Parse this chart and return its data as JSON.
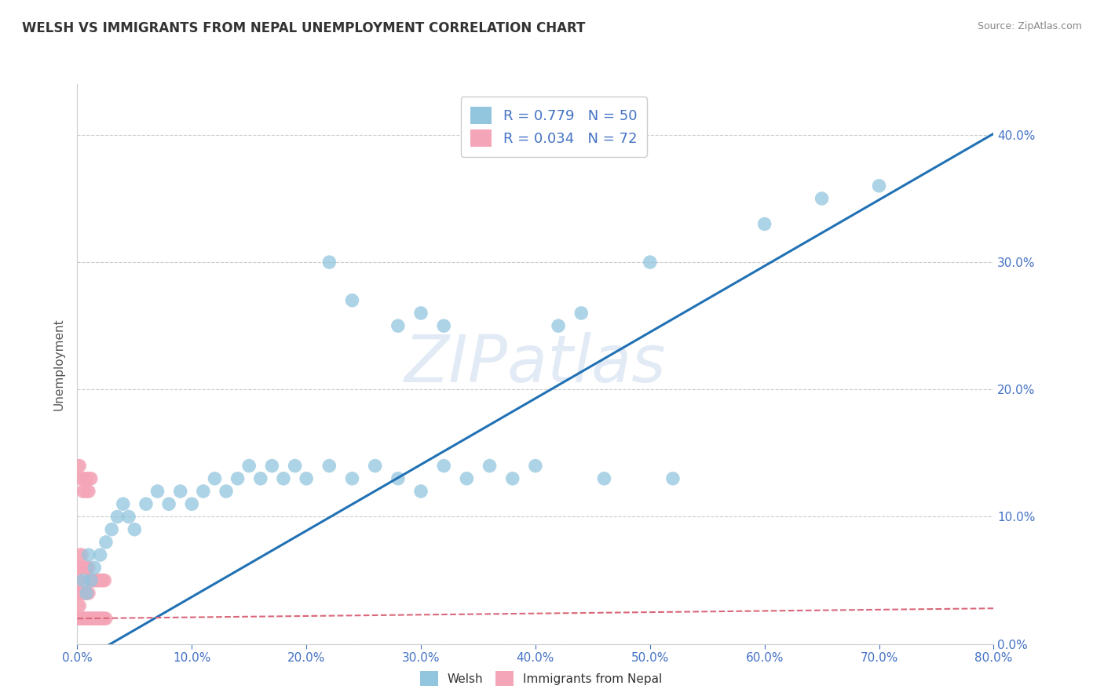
{
  "title": "WELSH VS IMMIGRANTS FROM NEPAL UNEMPLOYMENT CORRELATION CHART",
  "source": "Source: ZipAtlas.com",
  "ylabel": "Unemployment",
  "watermark": "ZIPatlas",
  "xlim": [
    0,
    0.8
  ],
  "ylim": [
    0,
    0.44
  ],
  "welsh_R": 0.779,
  "welsh_N": 50,
  "nepal_R": 0.034,
  "nepal_N": 72,
  "welsh_color": "#92c5de",
  "nepal_color": "#f4a6b8",
  "welsh_line_color": "#2171b5",
  "nepal_line_color": "#d9687a",
  "tick_label_color": "#4472c4",
  "legend_text_color": "#4472c4",
  "title_color": "#333333",
  "source_color": "#888888",
  "background_color": "#ffffff",
  "grid_color": "#cccccc",
  "welsh_line_slope": 0.52,
  "welsh_line_intercept": -0.015,
  "nepal_line_slope": 0.01,
  "nepal_line_intercept": 0.02,
  "welsh_scatter_x": [
    0.005,
    0.008,
    0.01,
    0.012,
    0.015,
    0.02,
    0.025,
    0.03,
    0.035,
    0.04,
    0.045,
    0.05,
    0.06,
    0.07,
    0.08,
    0.09,
    0.1,
    0.11,
    0.12,
    0.13,
    0.14,
    0.15,
    0.16,
    0.17,
    0.18,
    0.19,
    0.2,
    0.22,
    0.24,
    0.26,
    0.28,
    0.3,
    0.32,
    0.34,
    0.36,
    0.38,
    0.4,
    0.42,
    0.44,
    0.46,
    0.28,
    0.3,
    0.32,
    0.22,
    0.24,
    0.6,
    0.65,
    0.7,
    0.5,
    0.52
  ],
  "welsh_scatter_y": [
    0.05,
    0.04,
    0.07,
    0.05,
    0.06,
    0.07,
    0.08,
    0.09,
    0.1,
    0.11,
    0.1,
    0.09,
    0.11,
    0.12,
    0.11,
    0.12,
    0.11,
    0.12,
    0.13,
    0.12,
    0.13,
    0.14,
    0.13,
    0.14,
    0.13,
    0.14,
    0.13,
    0.14,
    0.13,
    0.14,
    0.13,
    0.12,
    0.14,
    0.13,
    0.14,
    0.13,
    0.14,
    0.25,
    0.26,
    0.13,
    0.25,
    0.26,
    0.25,
    0.3,
    0.27,
    0.33,
    0.35,
    0.36,
    0.3,
    0.13
  ],
  "nepal_scatter_x": [
    0.001,
    0.001,
    0.001,
    0.001,
    0.001,
    0.002,
    0.002,
    0.002,
    0.002,
    0.003,
    0.003,
    0.003,
    0.004,
    0.004,
    0.004,
    0.005,
    0.005,
    0.005,
    0.006,
    0.006,
    0.006,
    0.007,
    0.007,
    0.007,
    0.008,
    0.008,
    0.008,
    0.009,
    0.009,
    0.01,
    0.01,
    0.01,
    0.011,
    0.011,
    0.012,
    0.012,
    0.013,
    0.013,
    0.014,
    0.014,
    0.015,
    0.015,
    0.016,
    0.016,
    0.017,
    0.017,
    0.018,
    0.018,
    0.019,
    0.02,
    0.02,
    0.021,
    0.021,
    0.022,
    0.022,
    0.023,
    0.023,
    0.024,
    0.024,
    0.025,
    0.001,
    0.002,
    0.003,
    0.004,
    0.005,
    0.006,
    0.007,
    0.008,
    0.009,
    0.01,
    0.011,
    0.012
  ],
  "nepal_scatter_y": [
    0.02,
    0.03,
    0.04,
    0.05,
    0.06,
    0.02,
    0.03,
    0.05,
    0.07,
    0.02,
    0.04,
    0.06,
    0.02,
    0.04,
    0.07,
    0.02,
    0.04,
    0.06,
    0.02,
    0.04,
    0.06,
    0.02,
    0.04,
    0.06,
    0.02,
    0.04,
    0.06,
    0.02,
    0.04,
    0.02,
    0.04,
    0.06,
    0.02,
    0.05,
    0.02,
    0.05,
    0.02,
    0.05,
    0.02,
    0.05,
    0.02,
    0.05,
    0.02,
    0.05,
    0.02,
    0.05,
    0.02,
    0.05,
    0.02,
    0.02,
    0.05,
    0.02,
    0.05,
    0.02,
    0.05,
    0.02,
    0.05,
    0.02,
    0.05,
    0.02,
    0.14,
    0.14,
    0.13,
    0.13,
    0.12,
    0.12,
    0.13,
    0.13,
    0.12,
    0.12,
    0.13,
    0.13
  ]
}
